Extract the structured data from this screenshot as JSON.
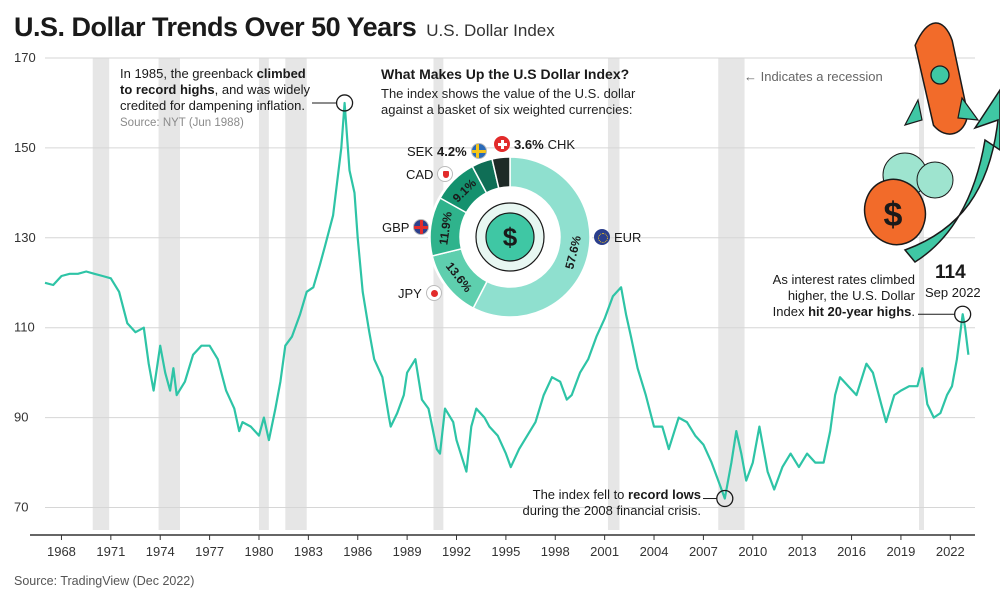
{
  "header": {
    "title": "U.S. Dollar Trends Over 50 Years",
    "subtitle": "U.S. Dollar Index"
  },
  "footer": {
    "source": "Source: TradingView (Dec 2022)"
  },
  "recession_legend": "← Indicates a recession",
  "annotations": {
    "peak_1985": {
      "pre": "In 1985, the greenback ",
      "bold": "climbed to record highs",
      "post": ", and was widely credited for dampening inflation.",
      "source": "Source: NYT (Jun 1988)"
    },
    "low_2008": {
      "pre": "The index fell to ",
      "bold": "record lows",
      "post": " during the 2008 financial crisis."
    },
    "high_2022": {
      "pre": "As interest rates climbed higher, the U.S. Dollar Index ",
      "bold": "hit 20-year highs",
      "post": ".",
      "value": "114",
      "date": "Sep 2022"
    }
  },
  "composition": {
    "title": "What Makes Up the U.S Dollar Index?",
    "subtitle": "The index shows the value of the U.S. dollar against a basket of six weighted currencies:",
    "slices": [
      {
        "currency": "EUR",
        "percent": 57.6,
        "label": "57.6%",
        "color": "#8fe0cf"
      },
      {
        "currency": "JPY",
        "percent": 13.6,
        "label": "13.6%",
        "color": "#5ecfae"
      },
      {
        "currency": "GBP",
        "percent": 11.9,
        "label": "11.9%",
        "color": "#2fb38c"
      },
      {
        "currency": "CAD",
        "percent": 9.1,
        "label": "9.1%",
        "color": "#14916e"
      },
      {
        "currency": "SEK",
        "percent": 4.2,
        "label": "4.2%",
        "color": "#0f6e56"
      },
      {
        "currency": "CHK",
        "percent": 3.6,
        "label": "3.6%",
        "color": "#1e2a27"
      }
    ]
  },
  "colors": {
    "line": "#2ec4a6",
    "recession_band": "#e6e6e6",
    "grid": "#d6d6d6",
    "rocket_body": "#f26b2a",
    "rocket_accent": "#3fc7a4"
  },
  "chart_data": {
    "type": "line",
    "title": "U.S. Dollar Trends Over 50 Years",
    "subtitle": "U.S. Dollar Index",
    "ylim": [
      65,
      170
    ],
    "xlim": [
      1967,
      2023.5
    ],
    "yticks": [
      70,
      90,
      110,
      130,
      150,
      170
    ],
    "xticks": [
      1968,
      1971,
      1974,
      1977,
      1980,
      1983,
      1986,
      1989,
      1992,
      1995,
      1998,
      2001,
      2004,
      2007,
      2010,
      2013,
      2016,
      2019,
      2022
    ],
    "grid": true,
    "recessions": [
      [
        1969.9,
        1970.9
      ],
      [
        1973.9,
        1975.2
      ],
      [
        1980.0,
        1980.6
      ],
      [
        1981.6,
        1982.9
      ],
      [
        1990.6,
        1991.2
      ],
      [
        2001.2,
        2001.9
      ],
      [
        2007.9,
        2009.5
      ],
      [
        2020.1,
        2020.4
      ]
    ],
    "series": [
      {
        "points": [
          [
            1967.0,
            120.0
          ],
          [
            1967.5,
            119.5
          ],
          [
            1968.0,
            121.5
          ],
          [
            1968.5,
            122.0
          ],
          [
            1969.0,
            122.0
          ],
          [
            1969.5,
            122.5
          ],
          [
            1970.0,
            122.0
          ],
          [
            1970.5,
            121.5
          ],
          [
            1971.0,
            121.0
          ],
          [
            1971.5,
            118.0
          ],
          [
            1972.0,
            111.0
          ],
          [
            1972.5,
            109.0
          ],
          [
            1973.0,
            110.0
          ],
          [
            1973.3,
            102.0
          ],
          [
            1973.6,
            96.0
          ],
          [
            1973.8,
            101.0
          ],
          [
            1974.0,
            106.0
          ],
          [
            1974.3,
            100.0
          ],
          [
            1974.6,
            96.0
          ],
          [
            1974.8,
            101.0
          ],
          [
            1975.0,
            95.0
          ],
          [
            1975.5,
            98.0
          ],
          [
            1976.0,
            104.0
          ],
          [
            1976.5,
            106.0
          ],
          [
            1977.0,
            106.0
          ],
          [
            1977.5,
            103.0
          ],
          [
            1978.0,
            96.0
          ],
          [
            1978.5,
            92.0
          ],
          [
            1978.8,
            87.0
          ],
          [
            1979.0,
            89.0
          ],
          [
            1979.5,
            88.0
          ],
          [
            1980.0,
            86.0
          ],
          [
            1980.3,
            90.0
          ],
          [
            1980.6,
            85.0
          ],
          [
            1981.0,
            92.0
          ],
          [
            1981.3,
            98.0
          ],
          [
            1981.6,
            106.0
          ],
          [
            1982.0,
            108.0
          ],
          [
            1982.5,
            113.0
          ],
          [
            1982.9,
            118.0
          ],
          [
            1983.3,
            119.0
          ],
          [
            1983.7,
            124.0
          ],
          [
            1984.0,
            128.0
          ],
          [
            1984.5,
            135.0
          ],
          [
            1985.0,
            150.0
          ],
          [
            1985.2,
            160.0
          ],
          [
            1985.5,
            145.0
          ],
          [
            1985.8,
            140.0
          ],
          [
            1986.0,
            130.0
          ],
          [
            1986.3,
            118.0
          ],
          [
            1986.7,
            109.0
          ],
          [
            1987.0,
            103.0
          ],
          [
            1987.5,
            99.0
          ],
          [
            1987.9,
            90.0
          ],
          [
            1988.0,
            88.0
          ],
          [
            1988.4,
            91.0
          ],
          [
            1988.8,
            95.0
          ],
          [
            1989.0,
            100.0
          ],
          [
            1989.5,
            103.0
          ],
          [
            1989.9,
            94.0
          ],
          [
            1990.3,
            92.0
          ],
          [
            1990.8,
            83.0
          ],
          [
            1991.0,
            82.0
          ],
          [
            1991.3,
            92.0
          ],
          [
            1991.8,
            89.0
          ],
          [
            1992.0,
            85.0
          ],
          [
            1992.6,
            78.0
          ],
          [
            1992.9,
            88.0
          ],
          [
            1993.2,
            92.0
          ],
          [
            1993.7,
            90.0
          ],
          [
            1994.0,
            88.0
          ],
          [
            1994.5,
            86.0
          ],
          [
            1995.0,
            82.0
          ],
          [
            1995.3,
            79.0
          ],
          [
            1995.8,
            83.0
          ],
          [
            1996.3,
            86.0
          ],
          [
            1996.8,
            89.0
          ],
          [
            1997.3,
            95.0
          ],
          [
            1997.8,
            99.0
          ],
          [
            1998.3,
            98.0
          ],
          [
            1998.7,
            94.0
          ],
          [
            1999.0,
            95.0
          ],
          [
            1999.5,
            100.0
          ],
          [
            2000.0,
            103.0
          ],
          [
            2000.5,
            108.0
          ],
          [
            2001.0,
            112.0
          ],
          [
            2001.5,
            117.0
          ],
          [
            2002.0,
            119.0
          ],
          [
            2002.3,
            113.0
          ],
          [
            2002.6,
            108.0
          ],
          [
            2003.0,
            101.0
          ],
          [
            2003.5,
            95.0
          ],
          [
            2004.0,
            88.0
          ],
          [
            2004.5,
            88.0
          ],
          [
            2004.9,
            83.0
          ],
          [
            2005.5,
            90.0
          ],
          [
            2006.0,
            89.0
          ],
          [
            2006.5,
            86.0
          ],
          [
            2007.0,
            84.0
          ],
          [
            2007.5,
            80.0
          ],
          [
            2008.0,
            75.0
          ],
          [
            2008.3,
            72.0
          ],
          [
            2008.7,
            80.0
          ],
          [
            2009.0,
            87.0
          ],
          [
            2009.3,
            82.0
          ],
          [
            2009.6,
            76.0
          ],
          [
            2010.0,
            80.0
          ],
          [
            2010.4,
            88.0
          ],
          [
            2010.9,
            78.0
          ],
          [
            2011.3,
            74.0
          ],
          [
            2011.8,
            79.0
          ],
          [
            2012.3,
            82.0
          ],
          [
            2012.8,
            79.0
          ],
          [
            2013.3,
            82.0
          ],
          [
            2013.8,
            80.0
          ],
          [
            2014.3,
            80.0
          ],
          [
            2014.7,
            87.0
          ],
          [
            2015.0,
            95.0
          ],
          [
            2015.3,
            99.0
          ],
          [
            2015.8,
            97.0
          ],
          [
            2016.3,
            95.0
          ],
          [
            2016.9,
            102.0
          ],
          [
            2017.3,
            100.0
          ],
          [
            2017.8,
            93.0
          ],
          [
            2018.1,
            89.0
          ],
          [
            2018.6,
            95.0
          ],
          [
            2019.0,
            96.0
          ],
          [
            2019.5,
            97.0
          ],
          [
            2020.0,
            97.0
          ],
          [
            2020.3,
            101.0
          ],
          [
            2020.6,
            93.0
          ],
          [
            2021.0,
            90.0
          ],
          [
            2021.4,
            91.0
          ],
          [
            2021.8,
            95.0
          ],
          [
            2022.1,
            97.0
          ],
          [
            2022.4,
            103.0
          ],
          [
            2022.75,
            113.0
          ],
          [
            2022.9,
            110.0
          ],
          [
            2023.1,
            104.0
          ]
        ]
      }
    ],
    "annotated_points": [
      {
        "label": "1985 peak",
        "x": 1985.2,
        "y": 160
      },
      {
        "label": "2008 low",
        "x": 2008.3,
        "y": 72
      },
      {
        "label": "Sep 2022",
        "x": 2022.75,
        "y": 113
      }
    ]
  }
}
